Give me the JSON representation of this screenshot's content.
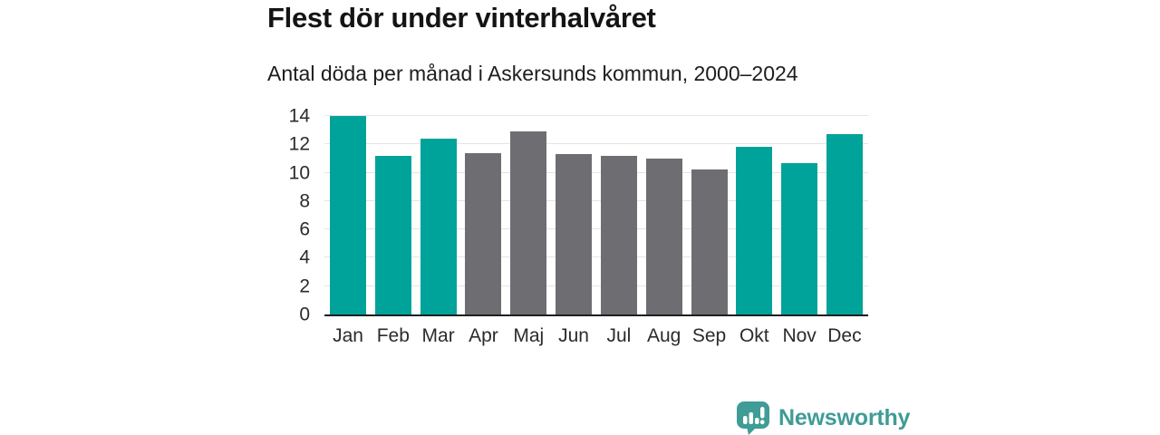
{
  "header": {
    "title": "Flest dör under vinterhalvåret",
    "subtitle": "Antal döda per månad i Askersunds kommun, 2000–2024"
  },
  "chart_data": {
    "type": "bar",
    "title": "Flest dör under vinterhalvåret",
    "subtitle": "Antal döda per månad i Askersunds kommun, 2000–2024",
    "categories": [
      "Jan",
      "Feb",
      "Mar",
      "Apr",
      "Maj",
      "Jun",
      "Jul",
      "Aug",
      "Sep",
      "Okt",
      "Nov",
      "Dec"
    ],
    "values": [
      14.0,
      11.2,
      12.4,
      11.4,
      12.9,
      11.3,
      11.2,
      11.0,
      10.2,
      11.8,
      10.7,
      12.7
    ],
    "bar_colors": [
      "highlight",
      "highlight",
      "highlight",
      "muted",
      "muted",
      "muted",
      "muted",
      "muted",
      "muted",
      "highlight",
      "highlight",
      "highlight"
    ],
    "xlabel": "",
    "ylabel": "",
    "ylim": [
      0,
      14
    ],
    "yticks": [
      0,
      2,
      4,
      6,
      8,
      10,
      12,
      14
    ],
    "grid": true,
    "legend": false,
    "colors": {
      "highlight": "#00a39a",
      "muted": "#6e6d72",
      "gridline": "#e4e4e4",
      "axis": "#1f1f1f",
      "tick_text": "#2b2b2b"
    }
  },
  "footer": {
    "brand": "Newsworthy",
    "brand_color": "#3f9c96",
    "logo_icon": "bar-chart-speech-bubble-icon"
  }
}
